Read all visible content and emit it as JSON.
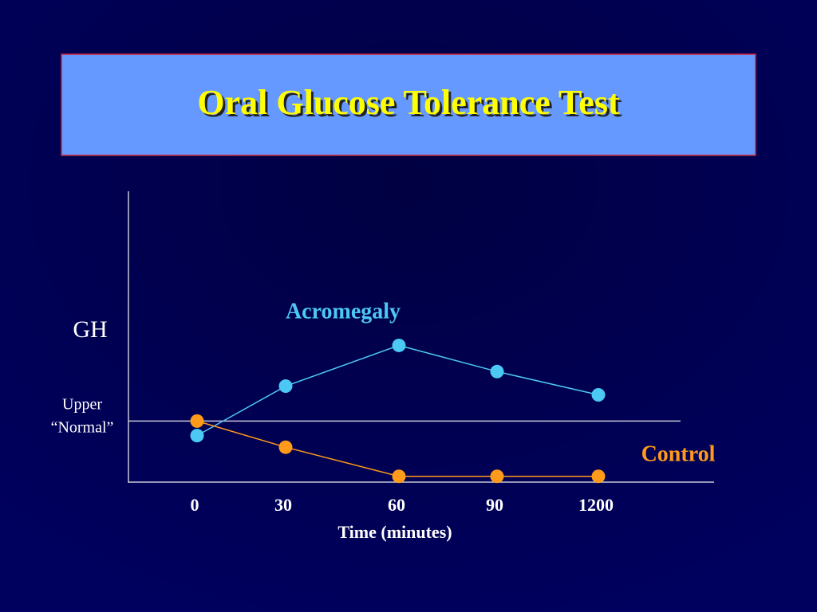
{
  "chart_data": {
    "type": "line",
    "title": "Oral Glucose Tolerance Test",
    "y_label": "GH",
    "x_label": "Time (minutes)",
    "categories": [
      "0",
      "30",
      "60",
      "90",
      "1200"
    ],
    "series": [
      {
        "name": "Acromegaly",
        "color": "#4cc8f4",
        "values": [
          1.6,
          3.3,
          4.7,
          3.8,
          3.0
        ]
      },
      {
        "name": "Control",
        "color": "#ff9a1a",
        "values": [
          2.1,
          1.2,
          0.2,
          0.2,
          0.2
        ]
      }
    ],
    "reference_line": {
      "label": [
        "Upper",
        "“Normal”"
      ],
      "value": 2.1
    },
    "ylim": [
      0,
      10
    ]
  }
}
